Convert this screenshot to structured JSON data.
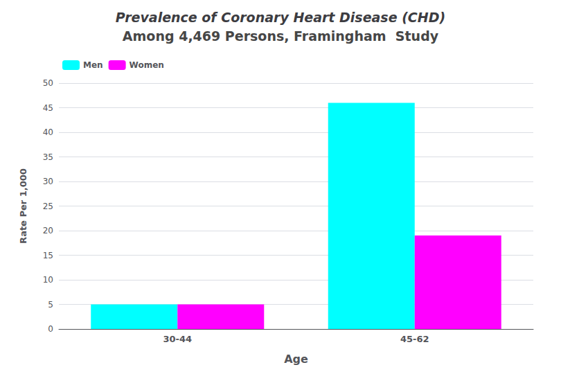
{
  "chart_data": {
    "type": "bar",
    "title": "Prevalence of Coronary Heart Disease (CHD)",
    "subtitle": "Among 4,469 Persons, Framingham  Study",
    "x_label": "Age",
    "y_label": "Rate Per 1,000",
    "categories": [
      "30-44",
      "45-62"
    ],
    "series": [
      {
        "name": "Men",
        "color": "#00FFFF",
        "values": [
          5,
          46
        ]
      },
      {
        "name": "Women",
        "color": "#FF00FF",
        "values": [
          5,
          19
        ]
      }
    ],
    "ylim": [
      0,
      50
    ],
    "yticks": [
      0,
      5,
      10,
      15,
      20,
      25,
      30,
      35,
      40,
      45,
      50
    ],
    "grid": true,
    "legend": "upper left"
  }
}
